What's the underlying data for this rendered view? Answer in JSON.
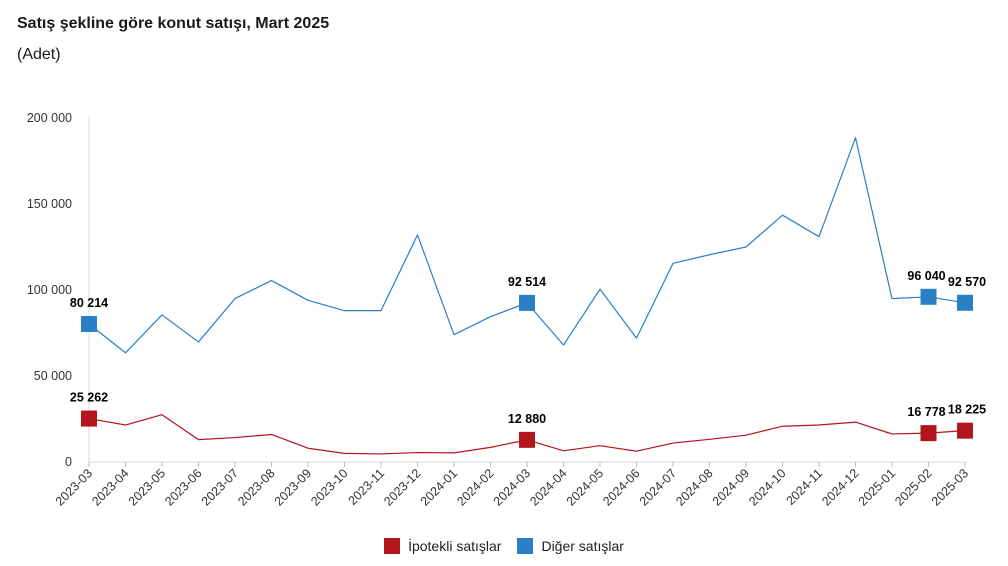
{
  "chart_data": {
    "type": "line",
    "title": "Satış şekline göre konut satışı, Mart 2025",
    "subtitle": "(Adet)",
    "categories": [
      "2023-03",
      "2023-04",
      "2023-05",
      "2023-06",
      "2023-07",
      "2023-08",
      "2023-09",
      "2023-10",
      "2023-11",
      "2023-12",
      "2024-01",
      "2024-02",
      "2024-03",
      "2024-04",
      "2024-05",
      "2024-06",
      "2024-07",
      "2024-08",
      "2024-09",
      "2024-10",
      "2024-11",
      "2024-12",
      "2025-01",
      "2025-02",
      "2025-03"
    ],
    "ylim": [
      0,
      200000
    ],
    "yticks": [
      0,
      50000,
      100000,
      150000,
      200000
    ],
    "ytick_labels": [
      "0",
      "50 000",
      "100 000",
      "150 000",
      "200 000"
    ],
    "series": [
      {
        "name": "İpotekli satışlar",
        "color": "#b2151b",
        "values": [
          25262,
          21500,
          27500,
          13000,
          14200,
          16000,
          8000,
          5000,
          4700,
          5500,
          5300,
          8500,
          12880,
          6500,
          9500,
          6300,
          11000,
          13200,
          15600,
          20800,
          21500,
          23200,
          16300,
          16778,
          18225
        ],
        "labels": [
          {
            "index": 0,
            "text": "25 262"
          },
          {
            "index": 12,
            "text": "12 880"
          },
          {
            "index": 23,
            "text": "16 778"
          },
          {
            "index": 24,
            "text": "18 225"
          }
        ]
      },
      {
        "name": "Diğer satışlar",
        "color": "#2a7fc6",
        "values": [
          80214,
          63500,
          85500,
          69800,
          95000,
          105500,
          94000,
          88000,
          88000,
          132000,
          74000,
          84500,
          92514,
          68000,
          100500,
          72000,
          115500,
          120500,
          125000,
          143500,
          131000,
          188500,
          95000,
          96040,
          92570
        ],
        "labels": [
          {
            "index": 0,
            "text": "80 214"
          },
          {
            "index": 12,
            "text": "92 514"
          },
          {
            "index": 23,
            "text": "96 040"
          },
          {
            "index": 24,
            "text": "92 570"
          }
        ]
      }
    ],
    "legend_position": "bottom-center",
    "grid": false
  }
}
